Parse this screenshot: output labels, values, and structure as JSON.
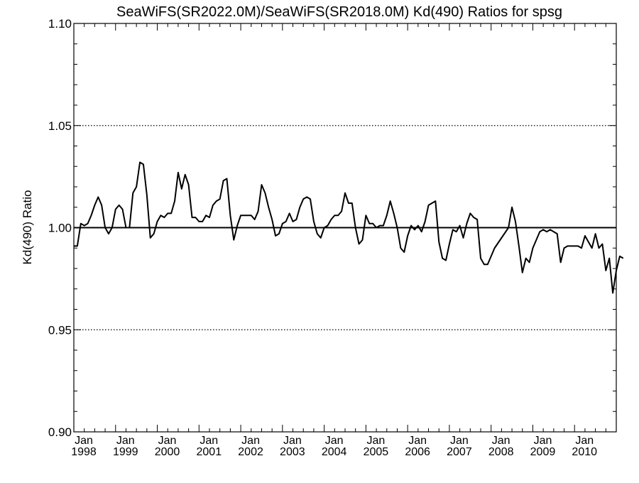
{
  "chart_data": {
    "type": "line",
    "title": "SeaWiFS(SR2022.0M)/SeaWiFS(SR2018.0M)  Kd(490) Ratios for spsg",
    "xlabel": "",
    "ylabel": "Kd(490) Ratio",
    "xlim": [
      "1998-01",
      "2011-01"
    ],
    "ylim": [
      0.9,
      1.1
    ],
    "yticks": [
      "0.90",
      "0.95",
      "1.00",
      "1.05",
      "1.10"
    ],
    "xticks": [
      {
        "month": "Jan",
        "year": "1998"
      },
      {
        "month": "Jan",
        "year": "1999"
      },
      {
        "month": "Jan",
        "year": "2000"
      },
      {
        "month": "Jan",
        "year": "2001"
      },
      {
        "month": "Jan",
        "year": "2002"
      },
      {
        "month": "Jan",
        "year": "2003"
      },
      {
        "month": "Jan",
        "year": "2004"
      },
      {
        "month": "Jan",
        "year": "2005"
      },
      {
        "month": "Jan",
        "year": "2006"
      },
      {
        "month": "Jan",
        "year": "2007"
      },
      {
        "month": "Jan",
        "year": "2008"
      },
      {
        "month": "Jan",
        "year": "2009"
      },
      {
        "month": "Jan",
        "year": "2010"
      }
    ],
    "reference_lines": [
      {
        "y": 1.0,
        "style": "solid"
      },
      {
        "y": 1.05,
        "style": "dotted"
      },
      {
        "y": 0.95,
        "style": "dotted"
      }
    ],
    "grid": false,
    "series": [
      {
        "color": "#000000",
        "points": [
          [
            "1998-01",
            0.991
          ],
          [
            "1998-02",
            0.991
          ],
          [
            "1998-03",
            1.002
          ],
          [
            "1998-04",
            1.001
          ],
          [
            "1998-05",
            1.002
          ],
          [
            "1998-06",
            1.006
          ],
          [
            "1998-07",
            1.011
          ],
          [
            "1998-08",
            1.015
          ],
          [
            "1998-09",
            1.011
          ],
          [
            "1998-10",
            1.0
          ],
          [
            "1998-11",
            0.997
          ],
          [
            "1998-12",
            1.0
          ],
          [
            "1999-01",
            1.009
          ],
          [
            "1999-02",
            1.011
          ],
          [
            "1999-03",
            1.009
          ],
          [
            "1999-04",
            1.0
          ],
          [
            "1999-05",
            1.0
          ],
          [
            "1999-06",
            1.017
          ],
          [
            "1999-07",
            1.02
          ],
          [
            "1999-08",
            1.032
          ],
          [
            "1999-09",
            1.031
          ],
          [
            "1999-10",
            1.016
          ],
          [
            "1999-11",
            0.995
          ],
          [
            "1999-12",
            0.997
          ],
          [
            "2000-01",
            1.003
          ],
          [
            "2000-02",
            1.006
          ],
          [
            "2000-03",
            1.005
          ],
          [
            "2000-04",
            1.007
          ],
          [
            "2000-05",
            1.007
          ],
          [
            "2000-06",
            1.013
          ],
          [
            "2000-07",
            1.027
          ],
          [
            "2000-08",
            1.019
          ],
          [
            "2000-09",
            1.026
          ],
          [
            "2000-10",
            1.021
          ],
          [
            "2000-11",
            1.005
          ],
          [
            "2000-12",
            1.005
          ],
          [
            "2001-01",
            1.003
          ],
          [
            "2001-02",
            1.003
          ],
          [
            "2001-03",
            1.006
          ],
          [
            "2001-04",
            1.005
          ],
          [
            "2001-05",
            1.011
          ],
          [
            "2001-06",
            1.013
          ],
          [
            "2001-07",
            1.014
          ],
          [
            "2001-08",
            1.023
          ],
          [
            "2001-09",
            1.024
          ],
          [
            "2001-10",
            1.006
          ],
          [
            "2001-11",
            0.994
          ],
          [
            "2001-12",
            1.001
          ],
          [
            "2002-01",
            1.006
          ],
          [
            "2002-02",
            1.006
          ],
          [
            "2002-03",
            1.006
          ],
          [
            "2002-04",
            1.006
          ],
          [
            "2002-05",
            1.004
          ],
          [
            "2002-06",
            1.008
          ],
          [
            "2002-07",
            1.021
          ],
          [
            "2002-08",
            1.017
          ],
          [
            "2002-09",
            1.01
          ],
          [
            "2002-10",
            1.004
          ],
          [
            "2002-11",
            0.996
          ],
          [
            "2002-12",
            0.997
          ],
          [
            "2003-01",
            1.002
          ],
          [
            "2003-02",
            1.003
          ],
          [
            "2003-03",
            1.007
          ],
          [
            "2003-04",
            1.003
          ],
          [
            "2003-05",
            1.004
          ],
          [
            "2003-06",
            1.01
          ],
          [
            "2003-07",
            1.014
          ],
          [
            "2003-08",
            1.015
          ],
          [
            "2003-09",
            1.014
          ],
          [
            "2003-10",
            1.003
          ],
          [
            "2003-11",
            0.997
          ],
          [
            "2003-12",
            0.995
          ],
          [
            "2004-01",
            1.0
          ],
          [
            "2004-02",
            1.001
          ],
          [
            "2004-03",
            1.004
          ],
          [
            "2004-04",
            1.006
          ],
          [
            "2004-05",
            1.006
          ],
          [
            "2004-06",
            1.008
          ],
          [
            "2004-07",
            1.017
          ],
          [
            "2004-08",
            1.012
          ],
          [
            "2004-09",
            1.012
          ],
          [
            "2004-10",
            1.0
          ],
          [
            "2004-11",
            0.992
          ],
          [
            "2004-12",
            0.994
          ],
          [
            "2005-01",
            1.006
          ],
          [
            "2005-02",
            1.002
          ],
          [
            "2005-03",
            1.002
          ],
          [
            "2005-04",
            1.0
          ],
          [
            "2005-05",
            1.001
          ],
          [
            "2005-06",
            1.001
          ],
          [
            "2005-07",
            1.006
          ],
          [
            "2005-08",
            1.013
          ],
          [
            "2005-09",
            1.007
          ],
          [
            "2005-10",
            1.0
          ],
          [
            "2005-11",
            0.99
          ],
          [
            "2005-12",
            0.988
          ],
          [
            "2006-01",
            0.996
          ],
          [
            "2006-02",
            1.001
          ],
          [
            "2006-03",
            0.999
          ],
          [
            "2006-04",
            1.001
          ],
          [
            "2006-05",
            0.998
          ],
          [
            "2006-06",
            1.003
          ],
          [
            "2006-07",
            1.011
          ],
          [
            "2006-08",
            1.012
          ],
          [
            "2006-09",
            1.013
          ],
          [
            "2006-10",
            0.993
          ],
          [
            "2006-11",
            0.985
          ],
          [
            "2006-12",
            0.984
          ],
          [
            "2007-01",
            0.992
          ],
          [
            "2007-02",
            0.999
          ],
          [
            "2007-03",
            0.998
          ],
          [
            "2007-04",
            1.001
          ],
          [
            "2007-05",
            0.995
          ],
          [
            "2007-06",
            1.002
          ],
          [
            "2007-07",
            1.007
          ],
          [
            "2007-08",
            1.005
          ],
          [
            "2007-09",
            1.004
          ],
          [
            "2007-10",
            0.985
          ],
          [
            "2007-11",
            0.982
          ],
          [
            "2007-12",
            0.982
          ],
          [
            "2008-01",
            0.986
          ],
          [
            "2008-02",
            0.99
          ],
          [
            "2008-06",
            1.0
          ],
          [
            "2008-07",
            1.01
          ],
          [
            "2008-08",
            1.003
          ],
          [
            "2008-09",
            0.991
          ],
          [
            "2008-10",
            0.978
          ],
          [
            "2008-11",
            0.985
          ],
          [
            "2008-12",
            0.983
          ],
          [
            "2009-01",
            0.99
          ],
          [
            "2009-02",
            0.994
          ],
          [
            "2009-03",
            0.998
          ],
          [
            "2009-04",
            0.999
          ],
          [
            "2009-05",
            0.998
          ],
          [
            "2009-06",
            0.999
          ],
          [
            "2009-07",
            0.998
          ],
          [
            "2009-08",
            0.997
          ],
          [
            "2009-09",
            0.983
          ],
          [
            "2009-10",
            0.99
          ],
          [
            "2009-11",
            0.991
          ],
          [
            "2009-12",
            0.991
          ],
          [
            "2010-01",
            0.991
          ],
          [
            "2010-02",
            0.991
          ],
          [
            "2010-03",
            0.99
          ],
          [
            "2010-04",
            0.996
          ],
          [
            "2010-05",
            0.993
          ],
          [
            "2010-06",
            0.99
          ],
          [
            "2010-07",
            0.997
          ],
          [
            "2010-08",
            0.99
          ],
          [
            "2010-09",
            0.992
          ],
          [
            "2010-10",
            0.979
          ],
          [
            "2010-11",
            0.985
          ],
          [
            "2010-12",
            0.968
          ],
          [
            "2011-01",
            0.979
          ],
          [
            "2011-02",
            0.986
          ],
          [
            "2011-03",
            0.985
          ]
        ]
      }
    ]
  }
}
